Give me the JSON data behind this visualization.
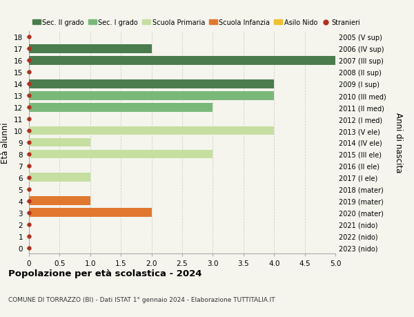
{
  "ages": [
    18,
    17,
    16,
    15,
    14,
    13,
    12,
    11,
    10,
    9,
    8,
    7,
    6,
    5,
    4,
    3,
    2,
    1,
    0
  ],
  "year_labels": [
    "2005 (V sup)",
    "2006 (IV sup)",
    "2007 (III sup)",
    "2008 (II sup)",
    "2009 (I sup)",
    "2010 (III med)",
    "2011 (II med)",
    "2012 (I med)",
    "2013 (V ele)",
    "2014 (IV ele)",
    "2015 (III ele)",
    "2016 (II ele)",
    "2017 (I ele)",
    "2018 (mater)",
    "2019 (mater)",
    "2020 (mater)",
    "2021 (nido)",
    "2022 (nido)",
    "2023 (nido)"
  ],
  "bar_values": [
    0,
    2,
    5,
    0,
    4,
    4,
    3,
    0,
    4,
    1,
    3,
    0,
    1,
    0,
    1,
    2,
    0,
    0,
    0
  ],
  "bar_colors": [
    "#4a7c4e",
    "#4a7c4e",
    "#4a7c4e",
    "#4a7c4e",
    "#4a7c4e",
    "#7ab87a",
    "#7ab87a",
    "#7ab87a",
    "#c5dfa0",
    "#c5dfa0",
    "#c5dfa0",
    "#c5dfa0",
    "#c5dfa0",
    "#e07830",
    "#e07830",
    "#e07830",
    "#f0c030",
    "#f0c030",
    "#f0c030"
  ],
  "dot_color": "#b03020",
  "xlim": [
    0,
    5.0
  ],
  "xticks": [
    0,
    0.5,
    1.0,
    1.5,
    2.0,
    2.5,
    3.0,
    3.5,
    4.0,
    4.5,
    5.0
  ],
  "xtick_labels": [
    "0",
    "0.5",
    "1.0",
    "1.5",
    "2.0",
    "2.5",
    "3.0",
    "3.5",
    "4.0",
    "4.5",
    "5.0"
  ],
  "ylabel_left": "Età alunni",
  "ylabel_right": "Anni di nascita",
  "title": "Popolazione per età scolastica - 2024",
  "subtitle": "COMUNE DI TORRAZZO (BI) - Dati ISTAT 1° gennaio 2024 - Elaborazione TUTTITALIA.IT",
  "legend_labels": [
    "Sec. II grado",
    "Sec. I grado",
    "Scuola Primaria",
    "Scuola Infanzia",
    "Asilo Nido",
    "Stranieri"
  ],
  "legend_colors": [
    "#4a7c4e",
    "#7ab87a",
    "#c5dfa0",
    "#e07830",
    "#f0c030",
    "#b03020"
  ],
  "bg_color": "#f5f5ee",
  "grid_color": "#d0d0c8",
  "bar_height": 0.75
}
